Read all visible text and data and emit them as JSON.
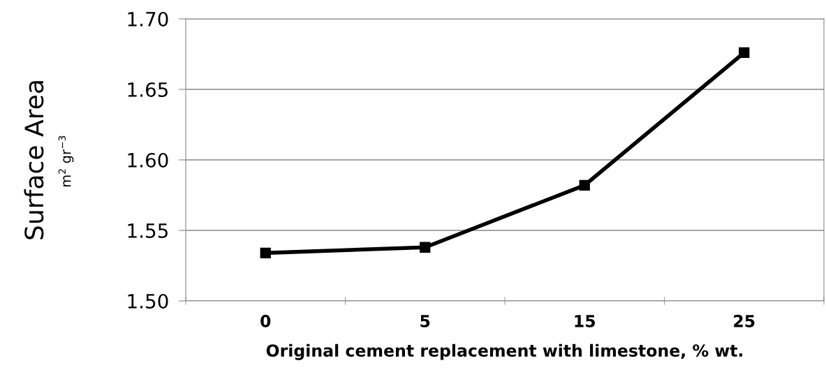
{
  "chart_data": {
    "type": "line",
    "xlabel": "Original cement replacement with limestone, % wt.",
    "ylabel": "Surface Area",
    "annotations": [
      "m$^{2}$ gr$^{−3}$"
    ],
    "categories": [
      "0",
      "5",
      "15",
      "25"
    ],
    "series": [
      {
        "color": "#000000",
        "values": [
          1.534,
          1.538,
          1.582,
          1.676
        ]
      }
    ],
    "ylim": [
      1.5,
      1.7
    ],
    "yticks": [
      {
        "value": 1.5,
        "label": "1.50"
      },
      {
        "value": 1.55,
        "label": "1.55"
      },
      {
        "value": 1.6,
        "label": "1.60"
      },
      {
        "value": 1.65,
        "label": "1.65"
      },
      {
        "value": 1.7,
        "label": "1.70"
      }
    ],
    "grid": "y",
    "marker": "square",
    "line_style": "solid"
  }
}
